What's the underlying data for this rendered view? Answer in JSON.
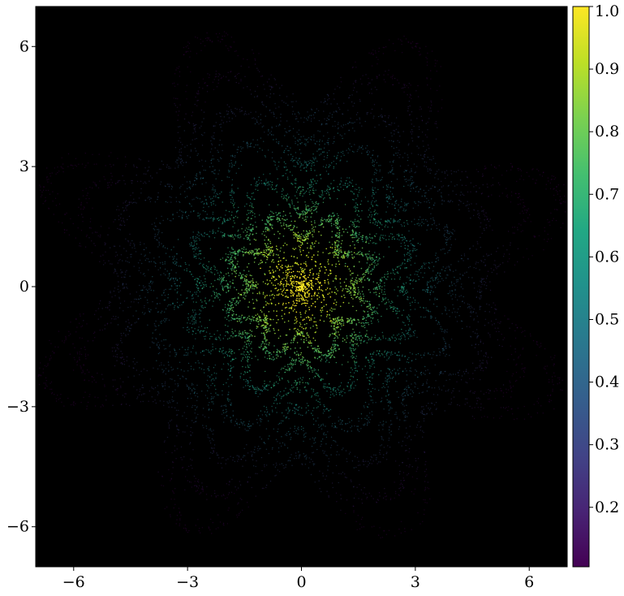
{
  "chart_data": {
    "type": "scatter",
    "title": "",
    "xlabel": "",
    "ylabel": "",
    "xlim": [
      -7,
      7
    ],
    "ylim": [
      -7,
      7
    ],
    "x_ticks": [
      {
        "value": -6,
        "label": "−6"
      },
      {
        "value": -3,
        "label": "−3"
      },
      {
        "value": 0,
        "label": "0"
      },
      {
        "value": 3,
        "label": "3"
      },
      {
        "value": 6,
        "label": "6"
      }
    ],
    "y_ticks": [
      {
        "value": 6,
        "label": "6"
      },
      {
        "value": 3,
        "label": "3"
      },
      {
        "value": 0,
        "label": "0"
      },
      {
        "value": -3,
        "label": "−3"
      },
      {
        "value": -6,
        "label": "−6"
      }
    ],
    "grid": false,
    "background_color": "#000000",
    "colormap": "viridis",
    "colorbar": {
      "range": [
        0.105,
        1.0
      ],
      "ticks": [
        {
          "value": 1.0,
          "label": "1.0"
        },
        {
          "value": 0.9,
          "label": "0.9"
        },
        {
          "value": 0.8,
          "label": "0.8"
        },
        {
          "value": 0.7,
          "label": "0.7"
        },
        {
          "value": 0.6,
          "label": "0.6"
        },
        {
          "value": 0.5,
          "label": "0.5"
        },
        {
          "value": 0.4,
          "label": "0.4"
        },
        {
          "value": 0.3,
          "label": "0.3"
        },
        {
          "value": 0.2,
          "label": "0.2"
        }
      ]
    },
    "description_structure": {
      "center": [
        0,
        0
      ],
      "petal_count": 8,
      "rotation_deg": 22
    }
  }
}
